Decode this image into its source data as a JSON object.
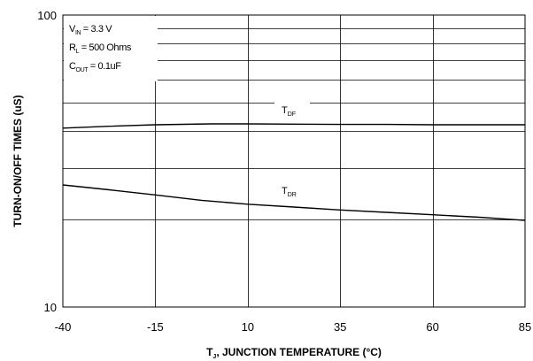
{
  "chart_data": {
    "type": "line",
    "xlabel": {
      "main": "T",
      "sub": "J",
      "rest": ", JUNCTION TEMPERATURE (°C)"
    },
    "ylabel": "TURN-ON/OFF TIMES (uS)",
    "x_ticks": [
      -40,
      -15,
      10,
      35,
      60,
      85
    ],
    "x_tick_labels": [
      "-40",
      "-15",
      "10",
      "35",
      "60",
      "85"
    ],
    "xlim": [
      -40,
      85
    ],
    "y_scale": "log",
    "ylim": [
      10,
      100
    ],
    "y_tick_labels": [
      "10",
      "100"
    ],
    "y_gridlines": [
      10,
      20,
      30,
      40,
      50,
      60,
      70,
      80,
      90,
      100
    ],
    "grid": true,
    "conditions": [
      {
        "main": "V",
        "sub": "IN",
        "rest": " = 3.3 V"
      },
      {
        "main": "R",
        "sub": "L",
        "rest": " = 500 Ohms"
      },
      {
        "main": "C",
        "sub": "OUT",
        "rest": " = 0.1uF"
      }
    ],
    "series": [
      {
        "name": {
          "main": "T",
          "sub": "DF"
        },
        "x": [
          -40,
          -27.5,
          -15,
          0,
          10,
          22.5,
          35,
          47.5,
          60,
          72.5,
          85
        ],
        "y": [
          41.0,
          41.6,
          42.1,
          42.4,
          42.4,
          42.3,
          42.2,
          42.2,
          42.1,
          42.1,
          42.1
        ]
      },
      {
        "name": {
          "main": "T",
          "sub": "DR"
        },
        "x": [
          -40,
          -27.5,
          -15,
          -2.5,
          10,
          22.5,
          35,
          47.5,
          60,
          72.5,
          85
        ],
        "y": [
          26.2,
          25.2,
          24.2,
          23.2,
          22.5,
          22.0,
          21.5,
          21.1,
          20.7,
          20.3,
          19.8
        ]
      }
    ]
  }
}
